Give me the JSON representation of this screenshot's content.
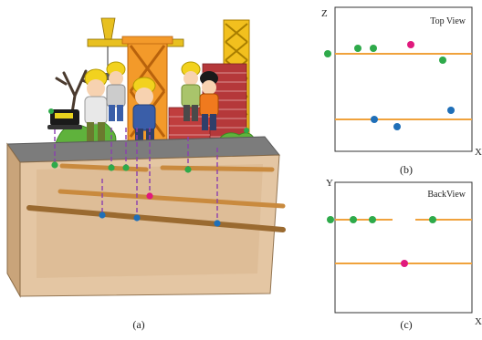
{
  "figure": {
    "panels": [
      {
        "id": "a",
        "caption": "(a)"
      },
      {
        "id": "b",
        "caption": "(b)",
        "title": "Top View",
        "axis_vertical": "Z",
        "axis_horizontal": "X"
      },
      {
        "id": "c",
        "caption": "(c)",
        "title": "BackView",
        "axis_vertical": "Y",
        "axis_horizontal": "X"
      }
    ]
  },
  "colors": {
    "rod": "#f0a23c",
    "rod_dark": "#c77a22",
    "green_dot": "#2eaa4a",
    "blue_dot": "#1f6fb8",
    "magenta_dot": "#e0197d",
    "dashed_line": "#8a3fb0",
    "box_wood": "#d7b48c",
    "panel_border": "#333333"
  }
}
